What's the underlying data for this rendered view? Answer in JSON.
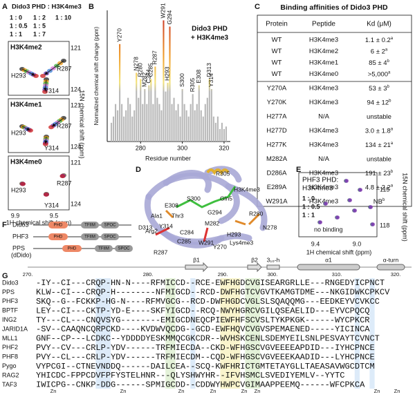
{
  "figure": {
    "panel_labels": [
      "A",
      "B",
      "C",
      "D",
      "E",
      "F",
      "G"
    ]
  },
  "panel_a": {
    "title": "Dido3 PHD : H3K4me3",
    "ratios": [
      {
        "text": "1 : 0",
        "color": "#222222"
      },
      {
        "text": "1 : 2",
        "color": "#d36bd3"
      },
      {
        "text": "1 : 10",
        "color": "#cc1f1f"
      },
      {
        "text": "1 : 0.5",
        "color": "#e8940c"
      },
      {
        "text": "1 : 5",
        "color": "#3b7fd4"
      },
      {
        "text": "1 : 1",
        "color": "#3aa83a"
      },
      {
        "text": "1 : 7",
        "color": "#6a35b0"
      }
    ],
    "spectra": [
      {
        "label": "H3K4me2",
        "peaks": [
          "R287",
          "H293",
          "Y314"
        ]
      },
      {
        "label": "H3K4me1",
        "peaks": [
          "R287",
          "H293",
          "Y314"
        ]
      },
      {
        "label": "H3K4me0",
        "peaks": [
          "R287",
          "H293",
          "Y314"
        ]
      }
    ],
    "yticks": [
      "121",
      "124"
    ],
    "xticks": [
      "9.9",
      "9.5"
    ],
    "ylabel": "15N chemical shift (ppm)",
    "xlabel": "1H chemical shift (ppm)"
  },
  "chart_data": {
    "type": "bar",
    "title": "Dido3 PHD",
    "subtitle": "+ H3K4me3",
    "xlabel": "Residue number",
    "ylabel": "Normalized chemical shift change (ppm)",
    "x": [
      266,
      267,
      268,
      269,
      270,
      271,
      272,
      273,
      274,
      275,
      276,
      277,
      278,
      279,
      280,
      281,
      282,
      283,
      284,
      285,
      286,
      287,
      288,
      289,
      290,
      291,
      292,
      293,
      294,
      295,
      296,
      297,
      298,
      299,
      300,
      301,
      302,
      303,
      304,
      305,
      306,
      307,
      308,
      309,
      310,
      311,
      312,
      313,
      314,
      315,
      316,
      317,
      318,
      319,
      320,
      321
    ],
    "values": [
      0.15,
      0.2,
      0.3,
      0.25,
      0.78,
      0.3,
      0.2,
      0.25,
      0.35,
      0.3,
      0.2,
      0.25,
      0.55,
      0.35,
      0.5,
      0.3,
      0.42,
      0.3,
      0.45,
      0.5,
      0.3,
      0.6,
      0.35,
      0.3,
      0.25,
      0.97,
      0.4,
      0.47,
      0.92,
      0.3,
      0.35,
      0.25,
      0.3,
      0.2,
      0.42,
      0.3,
      0.25,
      0.2,
      0.3,
      0.38,
      0.25,
      0.3,
      0.45,
      0.25,
      0.2,
      0.3,
      0.35,
      0.5,
      0.42,
      0.2,
      0.15,
      0.2,
      0.1,
      0.15,
      0.1,
      0.12
    ],
    "xlim": [
      264,
      323
    ],
    "ylim": [
      0,
      1.05
    ],
    "xticks": [
      280,
      300,
      320
    ],
    "annotations": [
      {
        "text": "Y270",
        "x": 270
      },
      {
        "text": "N278",
        "x": 278
      },
      {
        "text": "R280",
        "x": 280
      },
      {
        "text": "M282",
        "x": 282
      },
      {
        "text": "C284",
        "x": 284
      },
      {
        "text": "C285",
        "x": 285
      },
      {
        "text": "R287",
        "x": 287
      },
      {
        "text": "W291",
        "x": 291
      },
      {
        "text": "H293",
        "x": 293
      },
      {
        "text": "G294",
        "x": 294
      },
      {
        "text": "S300",
        "x": 300
      },
      {
        "text": "R305",
        "x": 305
      },
      {
        "text": "E308",
        "x": 308
      },
      {
        "text": "D313",
        "x": 313
      },
      {
        "text": "Y314",
        "x": 314
      }
    ]
  },
  "panel_c": {
    "title": "Binding affinities of  Dido3 PHD",
    "header": [
      "Protein",
      "Peptide",
      "Kd (μM)"
    ],
    "rows": [
      [
        "WT",
        "H3K4me3",
        "1.1 ± 0.2",
        "a"
      ],
      [
        "WT",
        "H3K4me2",
        "6 ± 2",
        "a"
      ],
      [
        "WT",
        "H3K4me1",
        "85 ± 4",
        "b"
      ],
      [
        "WT",
        "H3K4me0",
        ">5,000",
        "a"
      ],
      [
        "Y270A",
        "H3K4me3",
        "53 ± 3",
        "b"
      ],
      [
        "Y270K",
        "H3K4me3",
        "94 ± 12",
        "b"
      ],
      [
        "H277A",
        "N/A",
        "unstable",
        ""
      ],
      [
        "H277D",
        "H3K4me3",
        "3.0 ± 1.8",
        "a"
      ],
      [
        "H277K",
        "H3K4me3",
        "134 ± 21",
        "a"
      ],
      [
        "M282A",
        "N/A",
        "unstable",
        ""
      ],
      [
        "D286A",
        "H3K4me3",
        "191 ± 23",
        "b"
      ],
      [
        "E289A",
        "H3K4me3",
        "4.8 ± 2.2",
        "a"
      ],
      [
        "W291A",
        "H3K4me3",
        "NB",
        "b"
      ]
    ]
  },
  "panel_d": {
    "labels": [
      "R305",
      "H3K4me3",
      "Gln5",
      "E308",
      "S300",
      "Ala1",
      "Thr3",
      "G294",
      "R280",
      "N278",
      "D313",
      "Y314",
      "M282",
      "Arg2",
      "C284",
      "C285",
      "H293",
      "Lys4me3",
      "W291",
      "Y270",
      "R287"
    ]
  },
  "panel_e": {
    "title": "PHF3 PHD:",
    "subtitle": "H3K4me3",
    "ratios": [
      {
        "text": "1 : 0",
        "color": "#222222"
      },
      {
        "text": "1 : 0.5",
        "color": "#5b8fe0"
      },
      {
        "text": "1 : 1",
        "color": "#8a2aa8"
      }
    ],
    "note": "no binding",
    "yticks": [
      "115",
      "118"
    ],
    "xticks": [
      "9.4",
      "9.0"
    ],
    "ylabel": "15N chemical shift (ppm)",
    "xlabel": "1H chemical shift (ppm)"
  },
  "panel_f": {
    "proteins": [
      "Dido3",
      "PHF3",
      "PPS"
    ],
    "note": "(dDido)",
    "domains": [
      "PHD",
      "TFIIM",
      "SPOC"
    ]
  },
  "panel_g": {
    "residue_numbers": [
      "270.",
      "280.",
      "290.",
      "300.",
      "310.",
      "320."
    ],
    "structure": [
      "β1",
      "β2",
      "3₁₀-h",
      "α1",
      "α-turn"
    ],
    "rows": [
      [
        "Dido3",
        "-IY--CI---CRQP-HN-N----RFMICCD--RCE-EWFHGDCVGISEARGRLLE---RNGEDYICPNCT"
      ],
      [
        "PPS",
        "KLW--CI---CRQP-H--------NFMIGCD--RCD-DWFHGTCVGVTKAMGTDME---NKGIDWKCPKCV"
      ],
      [
        "PHF3",
        "SKQ--G--FCKKP-HG-N----RFMVGCG--RCD-DWFHGDCVGLSLSQAQQMG---EEDKEYVCVKCC"
      ],
      [
        "BPTF",
        "LEY--CI---CKTP-YD-E----SKFYIGCD--RCQ-NWYHGRCVGILQSEAELID---EYVCPQCQ"
      ],
      [
        "ING2",
        "TY---CL---CNQVSYG--------EMIGCDNEQCPIEWFHFSCVSLTYKPKGK------WYCPKCR"
      ],
      [
        "JARID1A",
        "-SV--CAAQNCQRPCKD----KVDWVQCDG--GCD-EWFHQVCVGVSPEMAENED-----YICINCA"
      ],
      [
        "MLL1",
        "GNF--CP---LCDKC--YDDDDYESKMMQCGKCDR--WVHSKCENLSDEMYEILSNLPESVAYTCVNCT"
      ],
      [
        "PHF2",
        "PVY--CV---CRLP-YDV------TRFMIECDA--CKD-WFHGSCVGVEEEEAPDID---IYHCPNCE"
      ],
      [
        "PHF8",
        "PVY--CL---CRLP-YDV------TRFMIECDM--CQD-WFHGSCVGVEEEKAADID---LYHCPNCE"
      ],
      [
        "Pygo",
        "VYPCGI--CTNEVNDDQ------DAILCEA--SCQ-KWFHRICTGMTETAYGLLTAEASAVWGCDTCM"
      ],
      [
        "RAG2",
        "YHICDC-FPPCDVFPFYSTELHNR---QLYSHWYHR--IFVHSMCLSVEDIYEMLV--YYTC"
      ],
      [
        "TAF3",
        "IWICPG--CNKP-DDG------SPMIGCDD--CDDWYHWPCVGIMAAPPEEMQ------WFCPKCA"
      ]
    ],
    "zn": "Zn"
  }
}
